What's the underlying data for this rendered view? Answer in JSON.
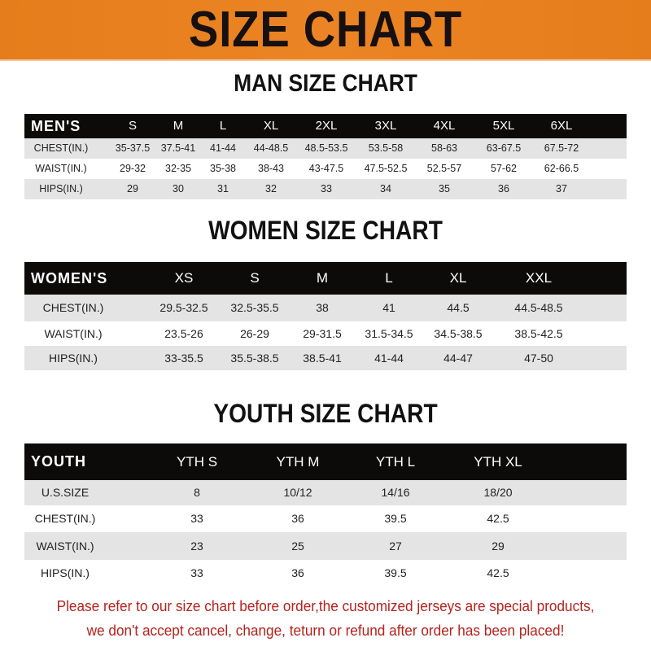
{
  "banner": {
    "title": "SIZE CHART",
    "color": "#e8801e"
  },
  "men": {
    "title": "MAN SIZE CHART",
    "header": [
      "MEN'S",
      "S",
      "M",
      "L",
      "XL",
      "2XL",
      "3XL",
      "4XL",
      "5XL",
      "6XL"
    ],
    "rows": [
      [
        "CHEST(IN.)",
        "35-37.5",
        "37.5-41",
        "41-44",
        "44-48.5",
        "48.5-53.5",
        "53.5-58",
        "58-63",
        "63-67.5",
        "67.5-72"
      ],
      [
        "WAIST(IN.)",
        "29-32",
        "32-35",
        "35-38",
        "38-43",
        "43-47.5",
        "47.5-52.5",
        "52.5-57",
        "57-62",
        "62-66.5"
      ],
      [
        "HIPS(IN.)",
        "29",
        "30",
        "31",
        "32",
        "33",
        "34",
        "35",
        "36",
        "37"
      ]
    ]
  },
  "women": {
    "title": "WOMEN SIZE CHART",
    "header": [
      "WOMEN'S",
      "XS",
      "S",
      "M",
      "L",
      "XL",
      "XXL"
    ],
    "rows": [
      [
        "CHEST(IN.)",
        "29.5-32.5",
        "32.5-35.5",
        "38",
        "41",
        "44.5",
        "44.5-48.5"
      ],
      [
        "WAIST(IN.)",
        "23.5-26",
        "26-29",
        "29-31.5",
        "31.5-34.5",
        "34.5-38.5",
        "38.5-42.5"
      ],
      [
        "HIPS(IN.)",
        "33-35.5",
        "35.5-38.5",
        "38.5-41",
        "41-44",
        "44-47",
        "47-50"
      ]
    ]
  },
  "youth": {
    "title": "YOUTH SIZE CHART",
    "header": [
      "YOUTH",
      "YTH S",
      "YTH M",
      "YTH L",
      "YTH XL"
    ],
    "rows": [
      [
        "U.S.SIZE",
        "8",
        "10/12",
        "14/16",
        "18/20"
      ],
      [
        "CHEST(IN.)",
        "33",
        "36",
        "39.5",
        "42.5"
      ],
      [
        "WAIST(IN.)",
        "23",
        "25",
        "27",
        "29"
      ],
      [
        "HIPS(IN.)",
        "33",
        "36",
        "39.5",
        "42.5"
      ]
    ]
  },
  "note": {
    "line1": "Please refer to our size chart before order,the customized jerseys are special products,",
    "line2": "we don't accept cancel, change, teturn or refund after order has been placed!",
    "color": "#b5221c"
  }
}
